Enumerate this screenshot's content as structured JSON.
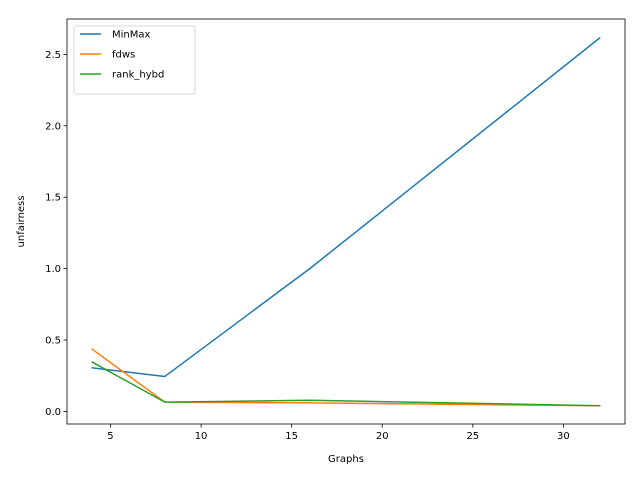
{
  "chart_data": {
    "type": "line",
    "title": "",
    "xlabel": "Graphs",
    "ylabel": "unfairness",
    "xlim": [
      2.6,
      33.4
    ],
    "ylim": [
      -0.088,
      2.748
    ],
    "xticks": [
      5,
      10,
      15,
      20,
      25,
      30
    ],
    "xtick_labels": [
      "5",
      "10",
      "15",
      "20",
      "25",
      "30"
    ],
    "yticks": [
      0.0,
      0.5,
      1.0,
      1.5,
      2.0,
      2.5
    ],
    "ytick_labels": [
      "0.0",
      "0.5",
      "1.0",
      "1.5",
      "2.0",
      "2.5"
    ],
    "grid": false,
    "legend_position": "top-left",
    "x": [
      4,
      8,
      16,
      32
    ],
    "series": [
      {
        "name": "MinMax",
        "color": "#1f77b4",
        "values": [
          0.305,
          0.245,
          1.0,
          2.615
        ]
      },
      {
        "name": "fdws",
        "color": "#ff7f0e",
        "values": [
          0.435,
          0.065,
          0.06,
          0.04
        ]
      },
      {
        "name": "rank_hybd",
        "color": "#2ca02c",
        "values": [
          0.345,
          0.065,
          0.078,
          0.04
        ]
      }
    ]
  }
}
